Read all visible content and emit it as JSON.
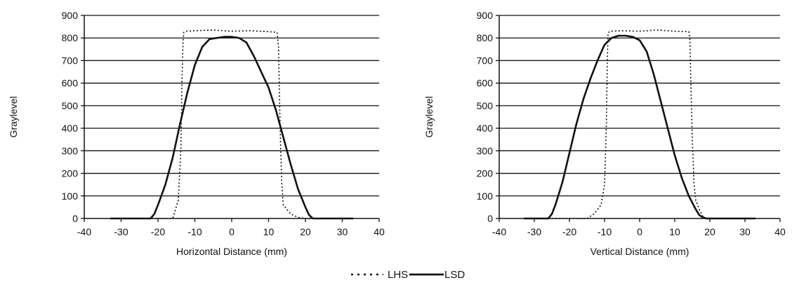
{
  "chart_data": [
    {
      "type": "line",
      "title": "",
      "xlabel": "Horizontal Distance (mm)",
      "ylabel": "Graylevel",
      "xlim": [
        -40,
        40
      ],
      "ylim": [
        0,
        900
      ],
      "xticks": [
        -40,
        -30,
        -20,
        -10,
        0,
        10,
        20,
        30,
        40
      ],
      "yticks": [
        0,
        100,
        200,
        300,
        400,
        500,
        600,
        700,
        800,
        900
      ],
      "grid": "horizontal",
      "series": [
        {
          "name": "LHS",
          "style": "dotted",
          "x": [
            -33,
            -20,
            -16,
            -14.5,
            -13.8,
            -13.5,
            -13.2,
            -13,
            -12.5,
            -10,
            -5,
            0,
            5,
            10,
            12.3,
            12.7,
            13,
            13.3,
            13.6,
            14,
            16,
            18,
            20,
            22,
            33
          ],
          "y": [
            0,
            0,
            0,
            80,
            300,
            600,
            780,
            825,
            830,
            832,
            835,
            830,
            832,
            828,
            825,
            760,
            500,
            300,
            150,
            60,
            20,
            5,
            0,
            0,
            0
          ]
        },
        {
          "name": "LSD",
          "style": "solid",
          "x": [
            -33,
            -22,
            -21,
            -20,
            -18,
            -16,
            -14,
            -12,
            -10,
            -8,
            -6,
            -4,
            -2,
            0,
            2,
            4,
            6,
            8,
            10,
            12,
            14,
            16,
            18,
            20,
            21,
            22,
            33
          ],
          "y": [
            0,
            0,
            20,
            60,
            150,
            270,
            420,
            560,
            680,
            760,
            795,
            800,
            805,
            805,
            800,
            780,
            720,
            650,
            580,
            480,
            360,
            240,
            130,
            50,
            15,
            0,
            0
          ]
        }
      ]
    },
    {
      "type": "line",
      "title": "",
      "xlabel": "Vertical Distance (mm)",
      "ylabel": "Graylevel",
      "xlim": [
        -40,
        40
      ],
      "ylim": [
        0,
        900
      ],
      "xticks": [
        -40,
        -30,
        -20,
        -10,
        0,
        10,
        20,
        30,
        40
      ],
      "yticks": [
        0,
        100,
        200,
        300,
        400,
        500,
        600,
        700,
        800,
        900
      ],
      "grid": "horizontal",
      "series": [
        {
          "name": "LHS",
          "style": "dotted",
          "x": [
            -33,
            -15,
            -13,
            -11,
            -10,
            -9.5,
            -9.2,
            -9,
            -8.5,
            -5,
            0,
            5,
            10,
            14,
            14.3,
            14.6,
            15,
            15.5,
            16,
            17,
            18,
            19,
            33
          ],
          "y": [
            0,
            0,
            20,
            60,
            150,
            400,
            700,
            820,
            830,
            832,
            830,
            835,
            830,
            828,
            800,
            600,
            350,
            150,
            80,
            40,
            10,
            0,
            0
          ]
        },
        {
          "name": "LSD",
          "style": "solid",
          "x": [
            -33,
            -26,
            -25,
            -24,
            -22,
            -20,
            -18,
            -16,
            -14,
            -12,
            -10,
            -8,
            -6,
            -4,
            -2,
            0,
            2,
            4,
            6,
            8,
            10,
            12,
            14,
            16,
            17,
            18,
            19,
            33
          ],
          "y": [
            0,
            0,
            20,
            60,
            160,
            290,
            420,
            530,
            620,
            700,
            770,
            800,
            810,
            810,
            805,
            790,
            740,
            640,
            520,
            400,
            280,
            180,
            100,
            40,
            15,
            5,
            0,
            0
          ]
        }
      ]
    }
  ],
  "legend": {
    "items": [
      {
        "label": "LHS",
        "style": "dotted"
      },
      {
        "label": "LSD",
        "style": "solid"
      }
    ],
    "placement": "bottom-center"
  }
}
